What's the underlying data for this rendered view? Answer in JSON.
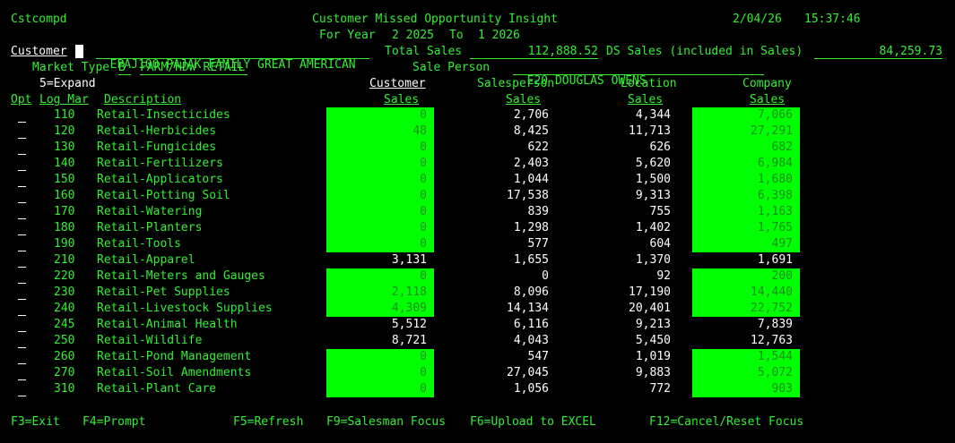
{
  "header": {
    "program": "Cstcompd",
    "title": "Customer Missed Opportunity Insight",
    "date": "2/04/26",
    "time": "15:37:46",
    "year_label": "For Year",
    "year_from": "2 2025",
    "year_to_label": "To",
    "year_to": "1 2026"
  },
  "customer": {
    "label": "Customer",
    "code": "EPAJ100",
    "name": "PAJAK FAMILY GREAT AMERICAN",
    "total_sales_label": "Total Sales",
    "total_sales": "112,888.52",
    "ds_sales_label": "DS Sales (included in Sales)",
    "ds_sales": "84,259.73",
    "market_type_label": "Market Type",
    "market_type": "B",
    "market_desc": "FARM/HDW RETAIL",
    "sale_person_label": "Sale Person",
    "sale_person_code": "E20",
    "sale_person_name": "DOUGLAS OWENS"
  },
  "legend": "5=Expand",
  "columns": {
    "opt": "Opt",
    "log_mar": "Log Mar",
    "description": "Description",
    "customer_top": "Customer",
    "customer_bottom": "Sales",
    "salesperson_top": "Salesperson",
    "salesperson_bottom": "Sales",
    "location_top": "Location",
    "location_bottom": "Sales",
    "company_top": "Company",
    "company_bottom": "Sales"
  },
  "rows": [
    {
      "code": "110",
      "desc": "Retail-Insecticides",
      "cust": "0",
      "sp": "2,706",
      "loc": "4,344",
      "comp": "7,066",
      "hl_cust": true,
      "hl_comp": true
    },
    {
      "code": "120",
      "desc": "Retail-Herbicides",
      "cust": "48",
      "sp": "8,425",
      "loc": "11,713",
      "comp": "27,291",
      "hl_cust": true,
      "hl_comp": true
    },
    {
      "code": "130",
      "desc": "Retail-Fungicides",
      "cust": "0",
      "sp": "622",
      "loc": "626",
      "comp": "682",
      "hl_cust": true,
      "hl_comp": true
    },
    {
      "code": "140",
      "desc": "Retail-Fertilizers",
      "cust": "0",
      "sp": "2,403",
      "loc": "5,620",
      "comp": "6,984",
      "hl_cust": true,
      "hl_comp": true
    },
    {
      "code": "150",
      "desc": "Retail-Applicators",
      "cust": "0",
      "sp": "1,044",
      "loc": "1,500",
      "comp": "1,680",
      "hl_cust": true,
      "hl_comp": true
    },
    {
      "code": "160",
      "desc": "Retail-Potting Soil",
      "cust": "0",
      "sp": "17,538",
      "loc": "9,313",
      "comp": "6,398",
      "hl_cust": true,
      "hl_comp": true
    },
    {
      "code": "170",
      "desc": "Retail-Watering",
      "cust": "0",
      "sp": "839",
      "loc": "755",
      "comp": "1,163",
      "hl_cust": true,
      "hl_comp": true
    },
    {
      "code": "180",
      "desc": "Retail-Planters",
      "cust": "0",
      "sp": "1,298",
      "loc": "1,402",
      "comp": "1,765",
      "hl_cust": true,
      "hl_comp": true
    },
    {
      "code": "190",
      "desc": "Retail-Tools",
      "cust": "0",
      "sp": "577",
      "loc": "604",
      "comp": "497",
      "hl_cust": true,
      "hl_comp": true
    },
    {
      "code": "210",
      "desc": "Retail-Apparel",
      "cust": "3,131",
      "sp": "1,655",
      "loc": "1,370",
      "comp": "1,691",
      "hl_cust": false,
      "hl_comp": false
    },
    {
      "code": "220",
      "desc": "Retail-Meters and Gauges",
      "cust": "0",
      "sp": "0",
      "loc": "92",
      "comp": "200",
      "hl_cust": true,
      "hl_comp": true
    },
    {
      "code": "230",
      "desc": "Retail-Pet Supplies",
      "cust": "2,118",
      "sp": "8,096",
      "loc": "17,190",
      "comp": "14,440",
      "hl_cust": true,
      "hl_comp": true
    },
    {
      "code": "240",
      "desc": "Retail-Livestock Supplies",
      "cust": "4,309",
      "sp": "14,134",
      "loc": "20,401",
      "comp": "22,752",
      "hl_cust": true,
      "hl_comp": true
    },
    {
      "code": "245",
      "desc": "Retail-Animal Health",
      "cust": "5,512",
      "sp": "6,116",
      "loc": "9,213",
      "comp": "7,839",
      "hl_cust": false,
      "hl_comp": false
    },
    {
      "code": "250",
      "desc": "Retail-Wildlife",
      "cust": "8,721",
      "sp": "4,043",
      "loc": "5,450",
      "comp": "12,763",
      "hl_cust": false,
      "hl_comp": false
    },
    {
      "code": "260",
      "desc": "Retail-Pond Management",
      "cust": "0",
      "sp": "547",
      "loc": "1,019",
      "comp": "1,544",
      "hl_cust": true,
      "hl_comp": true
    },
    {
      "code": "270",
      "desc": "Retail-Soil Amendments",
      "cust": "0",
      "sp": "27,045",
      "loc": "9,883",
      "comp": "5,072",
      "hl_cust": true,
      "hl_comp": true
    },
    {
      "code": "310",
      "desc": "Retail-Plant Care",
      "cust": "0",
      "sp": "1,056",
      "loc": "772",
      "comp": "903",
      "hl_cust": true,
      "hl_comp": true
    }
  ],
  "fkeys": [
    "F3=Exit",
    "F4=Prompt",
    "F5=Refresh",
    "F9=Salesman Focus",
    "F6=Upload to EXCEL",
    "F12=Cancel/Reset Focus"
  ],
  "colors": {
    "highlight": "#00ff00",
    "text": "#33ee33",
    "white": "#ffffff"
  }
}
